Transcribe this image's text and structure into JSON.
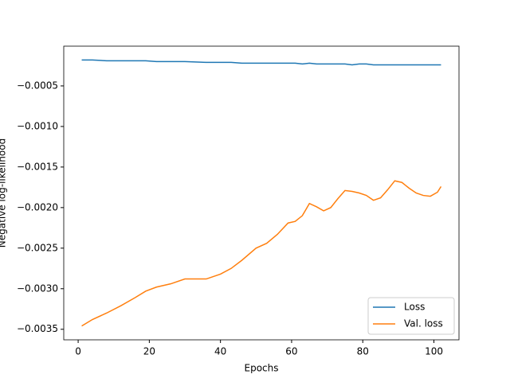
{
  "chart_data": {
    "type": "line",
    "xlabel": "Epochs",
    "ylabel": "Negative log-likelihood",
    "x": [
      1,
      4,
      8,
      12,
      16,
      19,
      22,
      26,
      30,
      36,
      40,
      43,
      46,
      50,
      53,
      56,
      59,
      61,
      63,
      65,
      67,
      69,
      71,
      73,
      75,
      77,
      79,
      81,
      83,
      85,
      87,
      89,
      91,
      93,
      95,
      97,
      99,
      101,
      102
    ],
    "series": [
      {
        "name": "Loss",
        "color": "#1f77b4",
        "values": [
          -0.00018,
          -0.00018,
          -0.00019,
          -0.00019,
          -0.00019,
          -0.00019,
          -0.0002,
          -0.0002,
          -0.0002,
          -0.00021,
          -0.00021,
          -0.00021,
          -0.00022,
          -0.00022,
          -0.00022,
          -0.00022,
          -0.00022,
          -0.00022,
          -0.00023,
          -0.00022,
          -0.00023,
          -0.00023,
          -0.00023,
          -0.00023,
          -0.00023,
          -0.00024,
          -0.00023,
          -0.00023,
          -0.00024,
          -0.00024,
          -0.00024,
          -0.00024,
          -0.00024,
          -0.00024,
          -0.00024,
          -0.00024,
          -0.00024,
          -0.00024,
          -0.00024
        ]
      },
      {
        "name": "Val. loss",
        "color": "#ff7f0e",
        "values": [
          -0.00346,
          -0.00338,
          -0.0033,
          -0.00321,
          -0.00311,
          -0.00303,
          -0.00298,
          -0.00294,
          -0.00288,
          -0.00288,
          -0.00282,
          -0.00275,
          -0.00265,
          -0.0025,
          -0.00244,
          -0.00233,
          -0.00219,
          -0.00217,
          -0.0021,
          -0.00195,
          -0.00199,
          -0.00204,
          -0.002,
          -0.00189,
          -0.00179,
          -0.0018,
          -0.00182,
          -0.00185,
          -0.00191,
          -0.00188,
          -0.00178,
          -0.00167,
          -0.00169,
          -0.00176,
          -0.00182,
          -0.00185,
          -0.00186,
          -0.00181,
          -0.00174
        ]
      }
    ],
    "xlim": [
      -4.05,
      107.05
    ],
    "ylim": [
      -0.00363,
      -1e-05
    ],
    "xticks": [
      0,
      20,
      40,
      60,
      80,
      100
    ],
    "yticks": [
      {
        "value": -0.0005,
        "label": "−0.0005"
      },
      {
        "value": -0.001,
        "label": "−0.0010"
      },
      {
        "value": -0.0015,
        "label": "−0.0015"
      },
      {
        "value": -0.002,
        "label": "−0.0020"
      },
      {
        "value": -0.0025,
        "label": "−0.0025"
      },
      {
        "value": -0.003,
        "label": "−0.0030"
      },
      {
        "value": -0.0035,
        "label": "−0.0035"
      }
    ],
    "legend": "lower right",
    "grid": false
  }
}
